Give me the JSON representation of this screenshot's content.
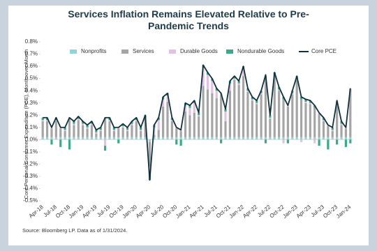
{
  "chart_data": {
    "type": "bar",
    "stacked": true,
    "legend": "top",
    "title": "Services Inflation Remains Elevated Relative to Pre-Pandemic Trends",
    "y_label": "Core Personal Consumer Expenditure (PCE), Month-over-Month",
    "source": "Source: Bloomberg LP. Data as of 1/31/2024.",
    "categories": [
      "Apr-18",
      null,
      null,
      "Jul-18",
      null,
      null,
      "Oct-18",
      null,
      null,
      "Jan-19",
      null,
      null,
      "Apr-19",
      null,
      null,
      "Jul-19",
      null,
      null,
      "Oct-19",
      null,
      null,
      "Jan-20",
      null,
      null,
      "Apr-20",
      null,
      null,
      "Jul-20",
      null,
      null,
      "Oct-20",
      null,
      null,
      "Jan-21",
      null,
      null,
      "Apr-21",
      null,
      null,
      "Jul-21",
      null,
      null,
      "Oct-21",
      null,
      null,
      "Jan-22",
      null,
      null,
      "Apr-22",
      null,
      null,
      "Jul-22",
      null,
      null,
      "Oct-22",
      null,
      null,
      "Jan-23",
      null,
      null,
      "Apr-23",
      null,
      null,
      "Jul-23",
      null,
      null,
      "Oct-23",
      null,
      null,
      "Jan-24"
    ],
    "ylim": [
      -0.5,
      0.8
    ],
    "yticks": [
      {
        "value": -0.5,
        "label": "-0.5%"
      },
      {
        "value": -0.4,
        "label": "-0.4%"
      },
      {
        "value": -0.3,
        "label": "-0.3%"
      },
      {
        "value": -0.2,
        "label": "-0.2%"
      },
      {
        "value": -0.1,
        "label": "-0.1%"
      },
      {
        "value": 0,
        "label": "0.0%"
      },
      {
        "value": 0.1,
        "label": "0.1%"
      },
      {
        "value": 0.2,
        "label": "0.2%"
      },
      {
        "value": 0.3,
        "label": "0.3%"
      },
      {
        "value": 0.4,
        "label": "0.4%"
      },
      {
        "value": 0.5,
        "label": "0.5%"
      },
      {
        "value": 0.6,
        "label": "0.6%"
      },
      {
        "value": 0.7,
        "label": "0.7%"
      },
      {
        "value": 0.8,
        "label": "0.8%"
      }
    ],
    "series": [
      {
        "name": "Nonprofits",
        "color": "#92d3d9",
        "values": [
          0.02,
          0.02,
          0.02,
          0.02,
          0.02,
          0.02,
          0.02,
          0.02,
          0.02,
          0.02,
          0.02,
          0.02,
          0.02,
          0.02,
          0.02,
          0.02,
          0.02,
          0.02,
          0.02,
          0.02,
          0.02,
          0.02,
          0.02,
          0.02,
          -0.02,
          0.02,
          0.02,
          0.02,
          0.02,
          0.02,
          0.02,
          0.02,
          0.02,
          0.02,
          0.02,
          0.02,
          0.02,
          0.02,
          0.02,
          0.02,
          0.02,
          0.02,
          0.02,
          0.02,
          0.02,
          0.02,
          0.02,
          0.02,
          0.02,
          0.02,
          0.02,
          0.02,
          0.02,
          0.02,
          0.02,
          0.02,
          0.02,
          0.02,
          0.02,
          0.02,
          0.02,
          0.02,
          0.02,
          0.02,
          0.02,
          0.02,
          0.02,
          0.02,
          0.02,
          0.02
        ]
      },
      {
        "name": "Services",
        "color": "#a5a5a5",
        "values": [
          0.13,
          0.13,
          0.07,
          0.13,
          0.07,
          0.05,
          0.15,
          0.1,
          0.14,
          0.1,
          0.07,
          0.1,
          0.03,
          0.05,
          0.16,
          0.13,
          0.05,
          0.07,
          0.08,
          0.05,
          0.1,
          0.13,
          0.05,
          0.15,
          -0.2,
          0.02,
          0.06,
          0.25,
          0.29,
          0.13,
          0.07,
          0.05,
          0.21,
          0.18,
          0.2,
          0.17,
          0.42,
          0.39,
          0.36,
          0.32,
          0.35,
          0.13,
          0.38,
          0.47,
          0.43,
          0.5,
          0.37,
          0.3,
          0.27,
          0.35,
          0.5,
          0.15,
          0.5,
          0.38,
          0.31,
          0.25,
          0.35,
          0.47,
          0.31,
          0.28,
          0.27,
          0.24,
          0.19,
          0.13,
          0.09,
          0.05,
          0.29,
          0.1,
          0.07,
          0.39
        ]
      },
      {
        "name": "Durable Goods",
        "color": "#e3c1e3",
        "values": [
          0.01,
          0.01,
          0.01,
          0.01,
          0.01,
          0.01,
          0.01,
          0.01,
          0.01,
          0.01,
          0.01,
          0.01,
          0.01,
          0.01,
          -0.05,
          0.01,
          0.01,
          0.01,
          0.01,
          0.01,
          0.01,
          0.01,
          0.01,
          0.01,
          -0.05,
          0.06,
          0.08,
          0.06,
          0.05,
          0.01,
          0.01,
          0.01,
          0.05,
          0.06,
          0.08,
          0.01,
          0.15,
          0.12,
          0.1,
          0.06,
          0.01,
          0.08,
          0.06,
          0.01,
          0.01,
          0.06,
          0.01,
          0.01,
          0.01,
          0.01,
          0.01,
          0.01,
          0.01,
          0.01,
          -0.03,
          0.01,
          0.01,
          0.01,
          -0.02,
          0.01,
          0.01,
          -0.03,
          0.01,
          0.01,
          0.01,
          0.01,
          0.01,
          0.01,
          0.01,
          0.01
        ]
      },
      {
        "name": "Nondurable Goods",
        "color": "#3aa88a",
        "values": [
          0.02,
          0.02,
          -0.04,
          0.02,
          -0.06,
          0.02,
          -0.08,
          0.02,
          0.02,
          0.02,
          0.02,
          0.02,
          0.02,
          0.02,
          -0.04,
          0.02,
          0.02,
          -0.03,
          0.02,
          0.02,
          0.02,
          0.02,
          0.02,
          0.02,
          -0.06,
          0.02,
          0.02,
          0.02,
          0.02,
          0.02,
          -0.04,
          -0.05,
          0.02,
          0.02,
          0.02,
          0.02,
          0.02,
          0.02,
          0.02,
          0.02,
          -0.03,
          0.02,
          0.02,
          0.02,
          0.02,
          0.02,
          0.02,
          0.02,
          0.02,
          0.02,
          -0.03,
          0.02,
          0.02,
          0.02,
          0.02,
          -0.03,
          0.02,
          0.02,
          0.02,
          0.02,
          0.02,
          0.02,
          -0.05,
          0.02,
          -0.08,
          0.02,
          -0.04,
          0.02,
          -0.06,
          -0.03
        ]
      },
      {
        "name": "Core PCE",
        "type": "line",
        "color": "#10303e",
        "values": [
          0.18,
          0.18,
          0.1,
          0.18,
          0.1,
          0.1,
          0.18,
          0.15,
          0.19,
          0.15,
          0.12,
          0.15,
          0.08,
          0.1,
          0.18,
          0.18,
          0.1,
          0.1,
          0.13,
          0.1,
          0.15,
          0.18,
          0.1,
          0.2,
          -0.33,
          0.12,
          0.18,
          0.35,
          0.38,
          0.18,
          0.1,
          0.08,
          0.3,
          0.28,
          0.32,
          0.22,
          0.61,
          0.55,
          0.5,
          0.42,
          0.38,
          0.25,
          0.48,
          0.52,
          0.48,
          0.6,
          0.42,
          0.35,
          0.32,
          0.4,
          0.53,
          0.2,
          0.55,
          0.43,
          0.35,
          0.28,
          0.4,
          0.52,
          0.35,
          0.33,
          0.32,
          0.28,
          0.22,
          0.18,
          0.12,
          0.1,
          0.32,
          0.15,
          0.1,
          0.42
        ]
      }
    ]
  }
}
